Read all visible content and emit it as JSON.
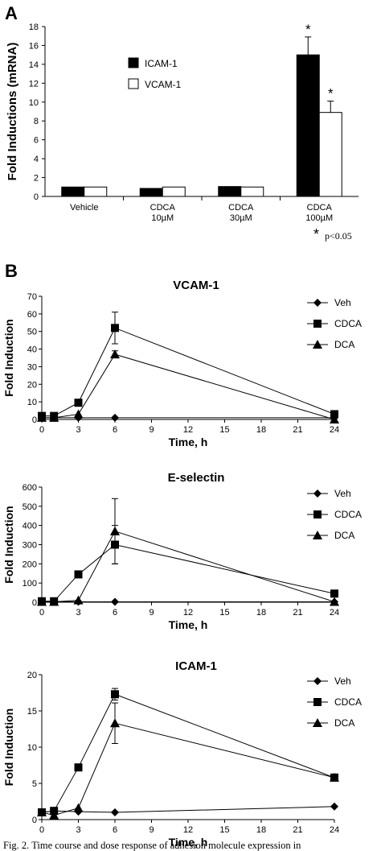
{
  "panel_letters": {
    "a": "A",
    "b": "B"
  },
  "caption": "Fig. 2. Time course and dose response of adhesion molecule expression in",
  "chart_data": [
    {
      "type": "bar",
      "panel": "A",
      "ylabel": "Fold Inductions (mRNA)",
      "ylim": [
        0,
        18
      ],
      "yticks": [
        "0",
        "2",
        "4",
        "6",
        "8",
        "10",
        "12",
        "14",
        "16",
        "18"
      ],
      "categories": [
        {
          "line1": "Vehicle",
          "line2": ""
        },
        {
          "line1": "CDCA",
          "line2": "10µM"
        },
        {
          "line1": "CDCA",
          "line2": "30µM"
        },
        {
          "line1": "CDCA",
          "line2": "100µM"
        }
      ],
      "series": [
        {
          "name": "ICAM-1",
          "color": "#000000",
          "values": [
            1.0,
            0.85,
            1.05,
            15.0
          ],
          "errors": [
            0,
            0,
            0,
            1.9
          ],
          "marks": [
            "",
            "",
            "",
            "*"
          ]
        },
        {
          "name": "VCAM-1",
          "color": "#ffffff",
          "values": [
            1.0,
            1.0,
            1.0,
            8.9
          ],
          "errors": [
            0,
            0,
            0,
            1.2
          ],
          "marks": [
            "",
            "",
            "",
            "*"
          ]
        }
      ],
      "legend_position": "top-left",
      "footnote": "p<0.05",
      "footnote_star": "*"
    },
    {
      "type": "line",
      "panel": "B",
      "title": "VCAM-1",
      "xlabel": "Time, h",
      "ylabel": "Fold Induction",
      "xticks": [
        0,
        3,
        6,
        9,
        12,
        15,
        18,
        21,
        24
      ],
      "ylim": [
        0,
        70
      ],
      "yticks": [
        0,
        10,
        20,
        30,
        40,
        50,
        60,
        70
      ],
      "legend_position": "right",
      "series": [
        {
          "name": "Veh",
          "marker": "diamond",
          "x": [
            0,
            1,
            3,
            6,
            24
          ],
          "y": [
            1,
            1,
            1,
            1,
            1
          ],
          "err": [
            0,
            0,
            0,
            0,
            0
          ]
        },
        {
          "name": "CDCA",
          "marker": "square",
          "x": [
            0,
            1,
            3,
            6,
            24
          ],
          "y": [
            2,
            2,
            9.5,
            52,
            3
          ],
          "err": [
            0,
            0,
            0,
            9,
            0
          ]
        },
        {
          "name": "DCA",
          "marker": "triangle",
          "x": [
            0,
            1,
            3,
            6,
            24
          ],
          "y": [
            1,
            1,
            3,
            37,
            0
          ],
          "err": [
            0,
            0,
            0,
            2,
            0
          ]
        }
      ]
    },
    {
      "type": "line",
      "panel": "B",
      "title": "E-selectin",
      "xlabel": "Time, h",
      "ylabel": "Fold Induction",
      "xticks": [
        0,
        3,
        6,
        9,
        12,
        15,
        18,
        21,
        24
      ],
      "ylim": [
        0,
        600
      ],
      "yticks": [
        0,
        100,
        200,
        300,
        400,
        500,
        600
      ],
      "legend_position": "right",
      "series": [
        {
          "name": "Veh",
          "marker": "diamond",
          "x": [
            0,
            1,
            3,
            6,
            24
          ],
          "y": [
            2,
            2,
            2,
            2,
            2
          ],
          "err": [
            0,
            0,
            0,
            0,
            0
          ]
        },
        {
          "name": "CDCA",
          "marker": "square",
          "x": [
            0,
            1,
            3,
            6,
            24
          ],
          "y": [
            5,
            5,
            145,
            300,
            45
          ],
          "err": [
            0,
            0,
            0,
            100,
            0
          ]
        },
        {
          "name": "DCA",
          "marker": "triangle",
          "x": [
            0,
            1,
            3,
            6,
            24
          ],
          "y": [
            2,
            2,
            10,
            370,
            2
          ],
          "err": [
            0,
            0,
            0,
            170,
            0
          ]
        }
      ]
    },
    {
      "type": "line",
      "panel": "B",
      "title": "ICAM-1",
      "xlabel": "Time, h",
      "ylabel": "Fold Induction",
      "xticks": [
        0,
        3,
        6,
        9,
        12,
        15,
        18,
        21,
        24
      ],
      "ylim": [
        0,
        20
      ],
      "yticks": [
        0,
        5,
        10,
        15,
        20
      ],
      "legend_position": "right",
      "series": [
        {
          "name": "Veh",
          "marker": "diamond",
          "x": [
            0,
            1,
            3,
            6,
            24
          ],
          "y": [
            1,
            1.2,
            1.1,
            1.0,
            1.8
          ],
          "err": [
            0,
            0,
            0,
            0,
            0
          ]
        },
        {
          "name": "CDCA",
          "marker": "square",
          "x": [
            0,
            1,
            3,
            6,
            24
          ],
          "y": [
            1,
            1.2,
            7.2,
            17.3,
            5.8
          ],
          "err": [
            0,
            0,
            0,
            0.8,
            0
          ]
        },
        {
          "name": "DCA",
          "marker": "triangle",
          "x": [
            0,
            1,
            3,
            6,
            24
          ],
          "y": [
            1,
            0.6,
            1.6,
            13.3,
            5.8
          ],
          "err": [
            0,
            0,
            0,
            2.8,
            0
          ]
        }
      ]
    }
  ]
}
